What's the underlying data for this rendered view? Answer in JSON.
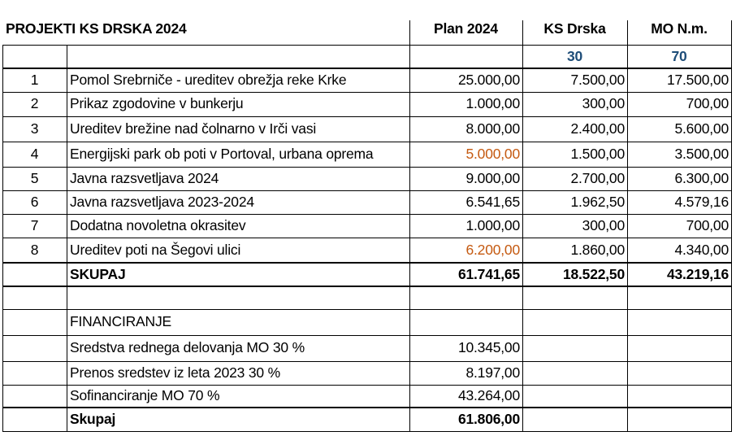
{
  "header": {
    "title": "PROJEKTI KS DRSKA  2024",
    "plan": "Plan 2024",
    "ks": "KS Drska",
    "mo": "MO N.m.",
    "ks_pct": "30",
    "mo_pct": "70"
  },
  "rows": [
    {
      "num": "1",
      "name": "Pomol Srebrniče - ureditev obrežja reke Krke",
      "plan": "25.000,00",
      "ks": "7.500,00",
      "mo": "17.500,00",
      "plan_color": "#000000"
    },
    {
      "num": "2",
      "name": "Prikaz zgodovine v bunkerju",
      "plan": "1.000,00",
      "ks": "300,00",
      "mo": "700,00",
      "plan_color": "#000000"
    },
    {
      "num": "3",
      "name": "Ureditev brežine nad čolnarno v Irči vasi",
      "plan": "8.000,00",
      "ks": "2.400,00",
      "mo": "5.600,00",
      "plan_color": "#000000"
    },
    {
      "num": "4",
      "name": "Energijski park ob poti v Portoval, urbana oprema",
      "plan": "5.000,00",
      "ks": "1.500,00",
      "mo": "3.500,00",
      "plan_color": "#c55a11"
    },
    {
      "num": "5",
      "name": "Javna razsvetljava  2024",
      "plan": "9.000,00",
      "ks": "2.700,00",
      "mo": "6.300,00",
      "plan_color": "#000000"
    },
    {
      "num": "6",
      "name": "Javna razsvetljava 2023-2024",
      "plan": "6.541,65",
      "ks": "1.962,50",
      "mo": "4.579,16",
      "plan_color": "#000000"
    },
    {
      "num": "7",
      "name": "Dodatna novoletna okrasitev",
      "plan": "1.000,00",
      "ks": "300,00",
      "mo": "700,00",
      "plan_color": "#000000"
    },
    {
      "num": "8",
      "name": "Ureditev poti na Šegovi ulici",
      "plan": "6.200,00",
      "ks": "1.860,00",
      "mo": "4.340,00",
      "plan_color": "#c55a11"
    }
  ],
  "total": {
    "label": "SKUPAJ",
    "plan": "61.741,65",
    "ks": "18.522,50",
    "mo": "43.219,16"
  },
  "financing": {
    "title": "FINANCIRANJE",
    "items": [
      {
        "label": "Sredstva rednega delovanja MO  30 %",
        "value": "10.345,00"
      },
      {
        "label": "Prenos sredstev iz leta 2023  30 %",
        "value": "8.197,00"
      },
      {
        "label": "Sofinanciranje MO  70 %",
        "value": "43.264,00"
      }
    ],
    "total_label": "Skupaj",
    "total_value": "61.806,00"
  }
}
